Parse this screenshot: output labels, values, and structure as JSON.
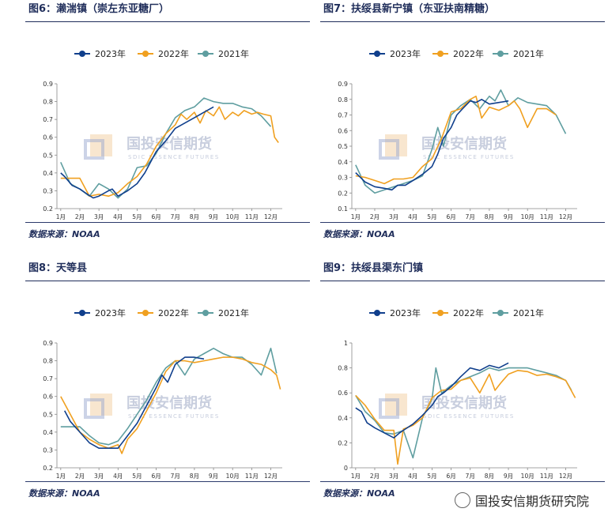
{
  "watermark": {
    "cn": "国投安信期货",
    "en": "SDIC ESSENCE FUTURES"
  },
  "footer": {
    "text": "国投安信期货研究院"
  },
  "legend": {
    "labels": [
      "2023年",
      "2022年",
      "2021年"
    ],
    "colors": [
      "#103f8c",
      "#f0a020",
      "#5f9ea0"
    ]
  },
  "months": [
    "1月",
    "2月",
    "3月",
    "4月",
    "5月",
    "6月",
    "7月",
    "8月",
    "9月",
    "10月",
    "11月",
    "12月"
  ],
  "chart_data": [
    {
      "type": "line",
      "title": "图6：濑湍镇（崇左东亚糖厂）",
      "source": "数据来源：NOAA",
      "ylim": [
        0.2,
        0.9
      ],
      "yticks": [
        "0.2",
        "0.3",
        "0.4",
        "0.5",
        "0.6",
        "0.7",
        "0.8",
        "0.9"
      ],
      "series": [
        {
          "name": "2023年",
          "x": [
            1,
            1.2,
            1.6,
            2,
            2.4,
            2.7,
            3,
            3.5,
            3.7,
            4,
            4.5,
            5,
            5.4,
            6,
            6.5,
            7,
            7.5,
            8,
            8.5,
            9
          ],
          "values": [
            0.4,
            0.38,
            0.33,
            0.31,
            0.28,
            0.26,
            0.27,
            0.3,
            0.31,
            0.27,
            0.3,
            0.34,
            0.4,
            0.52,
            0.58,
            0.65,
            0.68,
            0.71,
            0.74,
            0.77
          ]
        },
        {
          "name": "2022年",
          "x": [
            1,
            1.5,
            2,
            2.5,
            3,
            3.5,
            4,
            4.5,
            5,
            5.5,
            6,
            6.5,
            7,
            7.3,
            7.6,
            8,
            8.3,
            8.6,
            9,
            9.3,
            9.6,
            10,
            10.3,
            10.6,
            11,
            11.3,
            11.6,
            12,
            12.2,
            12.4
          ],
          "values": [
            0.37,
            0.37,
            0.37,
            0.27,
            0.28,
            0.27,
            0.29,
            0.34,
            0.38,
            0.45,
            0.55,
            0.62,
            0.67,
            0.73,
            0.7,
            0.74,
            0.68,
            0.75,
            0.72,
            0.77,
            0.7,
            0.74,
            0.72,
            0.75,
            0.73,
            0.74,
            0.73,
            0.72,
            0.6,
            0.57
          ]
        },
        {
          "name": "2021年",
          "x": [
            1,
            1.5,
            2,
            2.5,
            3,
            3.5,
            4,
            4.5,
            5,
            5.5,
            6,
            6.5,
            7,
            7.5,
            8,
            8.5,
            9,
            9.5,
            10,
            10.5,
            11,
            11.5,
            12
          ],
          "values": [
            0.46,
            0.34,
            0.31,
            0.27,
            0.34,
            0.31,
            0.26,
            0.31,
            0.43,
            0.44,
            0.51,
            0.62,
            0.71,
            0.75,
            0.77,
            0.82,
            0.8,
            0.79,
            0.79,
            0.77,
            0.76,
            0.72,
            0.66
          ]
        }
      ]
    },
    {
      "type": "line",
      "title": "图7：扶绥县新宁镇（东亚扶南精糖）",
      "source": "数据来源：NOAA",
      "ylim": [
        0.1,
        0.9
      ],
      "yticks": [
        "0.1",
        "0.2",
        "0.3",
        "0.4",
        "0.5",
        "0.6",
        "0.7",
        "0.8",
        "0.9"
      ],
      "series": [
        {
          "name": "2023年",
          "x": [
            1,
            1.5,
            2,
            2.5,
            2.9,
            3.2,
            3.6,
            4,
            4.5,
            5,
            5.3,
            5.6,
            6,
            6.3,
            6.6,
            7,
            7.3,
            7.6,
            8,
            8.5,
            9
          ],
          "values": [
            0.33,
            0.27,
            0.24,
            0.23,
            0.22,
            0.25,
            0.25,
            0.28,
            0.32,
            0.37,
            0.45,
            0.55,
            0.62,
            0.7,
            0.74,
            0.79,
            0.78,
            0.8,
            0.77,
            0.78,
            0.79
          ]
        },
        {
          "name": "2022年",
          "x": [
            1,
            1.5,
            2,
            2.5,
            3,
            3.5,
            4,
            4.5,
            5,
            5.5,
            6,
            6.5,
            7,
            7.3,
            7.6,
            8,
            8.5,
            9,
            9.3,
            9.6,
            10,
            10.5,
            11,
            11.5
          ],
          "values": [
            0.31,
            0.3,
            0.28,
            0.26,
            0.29,
            0.29,
            0.3,
            0.37,
            0.42,
            0.55,
            0.72,
            0.74,
            0.8,
            0.82,
            0.68,
            0.75,
            0.73,
            0.76,
            0.79,
            0.74,
            0.62,
            0.74,
            0.74,
            0.7
          ]
        },
        {
          "name": "2021年",
          "x": [
            1,
            1.5,
            2,
            2.5,
            3,
            3.5,
            4,
            4.5,
            5,
            5.3,
            5.6,
            6,
            6.5,
            7,
            7.5,
            8,
            8.3,
            8.6,
            9,
            9.5,
            10,
            10.5,
            11,
            11.5,
            12
          ],
          "values": [
            0.38,
            0.25,
            0.2,
            0.22,
            0.24,
            0.26,
            0.28,
            0.31,
            0.48,
            0.62,
            0.5,
            0.7,
            0.76,
            0.8,
            0.74,
            0.82,
            0.79,
            0.86,
            0.76,
            0.81,
            0.78,
            0.77,
            0.76,
            0.7,
            0.58
          ]
        }
      ]
    },
    {
      "type": "line",
      "title": "图8：天等县",
      "source": "数据来源：NOAA",
      "ylim": [
        0.2,
        0.9
      ],
      "yticks": [
        "0.2",
        "0.3",
        "0.4",
        "0.5",
        "0.6",
        "0.7",
        "0.8",
        "0.9"
      ],
      "series": [
        {
          "name": "2023年",
          "x": [
            1.2,
            1.5,
            2,
            2.5,
            3,
            3.5,
            4,
            4.5,
            5,
            5.5,
            6,
            6.3,
            6.6,
            7,
            7.5,
            8,
            8.5
          ],
          "values": [
            0.52,
            0.46,
            0.4,
            0.34,
            0.31,
            0.31,
            0.31,
            0.38,
            0.45,
            0.55,
            0.65,
            0.72,
            0.68,
            0.78,
            0.82,
            0.82,
            0.81
          ]
        },
        {
          "name": "2022年",
          "x": [
            1,
            1.5,
            2,
            2.5,
            3,
            3.5,
            4,
            4.2,
            4.5,
            5,
            5.5,
            6,
            6.5,
            7,
            7.5,
            8,
            8.5,
            9,
            9.5,
            10,
            10.5,
            11,
            11.5,
            12,
            12.3,
            12.5
          ],
          "values": [
            0.6,
            0.5,
            0.4,
            0.36,
            0.33,
            0.31,
            0.33,
            0.28,
            0.36,
            0.42,
            0.52,
            0.62,
            0.74,
            0.8,
            0.8,
            0.79,
            0.8,
            0.81,
            0.82,
            0.82,
            0.81,
            0.79,
            0.78,
            0.75,
            0.72,
            0.64
          ]
        },
        {
          "name": "2021年",
          "x": [
            1,
            1.5,
            2,
            2.5,
            3,
            3.5,
            4,
            4.5,
            5,
            5.5,
            6,
            6.5,
            7,
            7.5,
            8,
            8.5,
            9,
            9.5,
            10,
            10.5,
            11,
            11.5,
            12,
            12.3
          ],
          "values": [
            0.43,
            0.43,
            0.43,
            0.38,
            0.34,
            0.33,
            0.35,
            0.42,
            0.5,
            0.58,
            0.68,
            0.76,
            0.8,
            0.72,
            0.81,
            0.84,
            0.87,
            0.84,
            0.82,
            0.82,
            0.78,
            0.72,
            0.87,
            0.73
          ]
        }
      ]
    },
    {
      "type": "line",
      "title": "图9：扶绥县渠东门镇",
      "source": "数据来源：NOAA",
      "ylim": [
        0,
        1
      ],
      "yticks": [
        "0",
        "0.2",
        "0.4",
        "0.6",
        "0.8",
        "1"
      ],
      "series": [
        {
          "name": "2023年",
          "x": [
            1,
            1.3,
            1.6,
            2,
            2.5,
            3,
            3.3,
            3.6,
            4,
            4.5,
            5,
            5.3,
            5.6,
            6,
            6.5,
            7,
            7.5,
            8,
            8.5,
            9
          ],
          "values": [
            0.48,
            0.45,
            0.36,
            0.32,
            0.28,
            0.24,
            0.28,
            0.31,
            0.35,
            0.42,
            0.5,
            0.57,
            0.6,
            0.65,
            0.73,
            0.8,
            0.78,
            0.82,
            0.8,
            0.84
          ]
        },
        {
          "name": "2022年",
          "x": [
            1,
            1.5,
            2,
            2.5,
            3,
            3.2,
            3.5,
            4,
            4.5,
            5,
            5.5,
            6,
            6.5,
            7,
            7.5,
            8,
            8.3,
            8.6,
            9,
            9.5,
            10,
            10.5,
            11,
            11.5,
            12,
            12.5
          ],
          "values": [
            0.58,
            0.5,
            0.39,
            0.3,
            0.3,
            0.03,
            0.31,
            0.34,
            0.4,
            0.56,
            0.62,
            0.63,
            0.7,
            0.72,
            0.6,
            0.75,
            0.62,
            0.68,
            0.75,
            0.78,
            0.77,
            0.74,
            0.75,
            0.73,
            0.7,
            0.56
          ]
        },
        {
          "name": "2021年",
          "x": [
            1,
            1.5,
            2,
            2.5,
            3,
            3.5,
            4,
            4.5,
            5,
            5.2,
            5.5,
            6,
            6.5,
            7,
            7.5,
            8,
            8.5,
            9,
            9.5,
            10,
            10.5,
            11,
            11.5,
            12,
            12.3
          ],
          "values": [
            0.58,
            0.45,
            0.38,
            0.28,
            0.27,
            0.3,
            0.08,
            0.4,
            0.55,
            0.8,
            0.6,
            0.66,
            0.7,
            0.73,
            0.76,
            0.8,
            0.78,
            0.8,
            0.8,
            0.8,
            0.78,
            0.76,
            0.74,
            0.7,
            0.62
          ]
        }
      ]
    }
  ]
}
